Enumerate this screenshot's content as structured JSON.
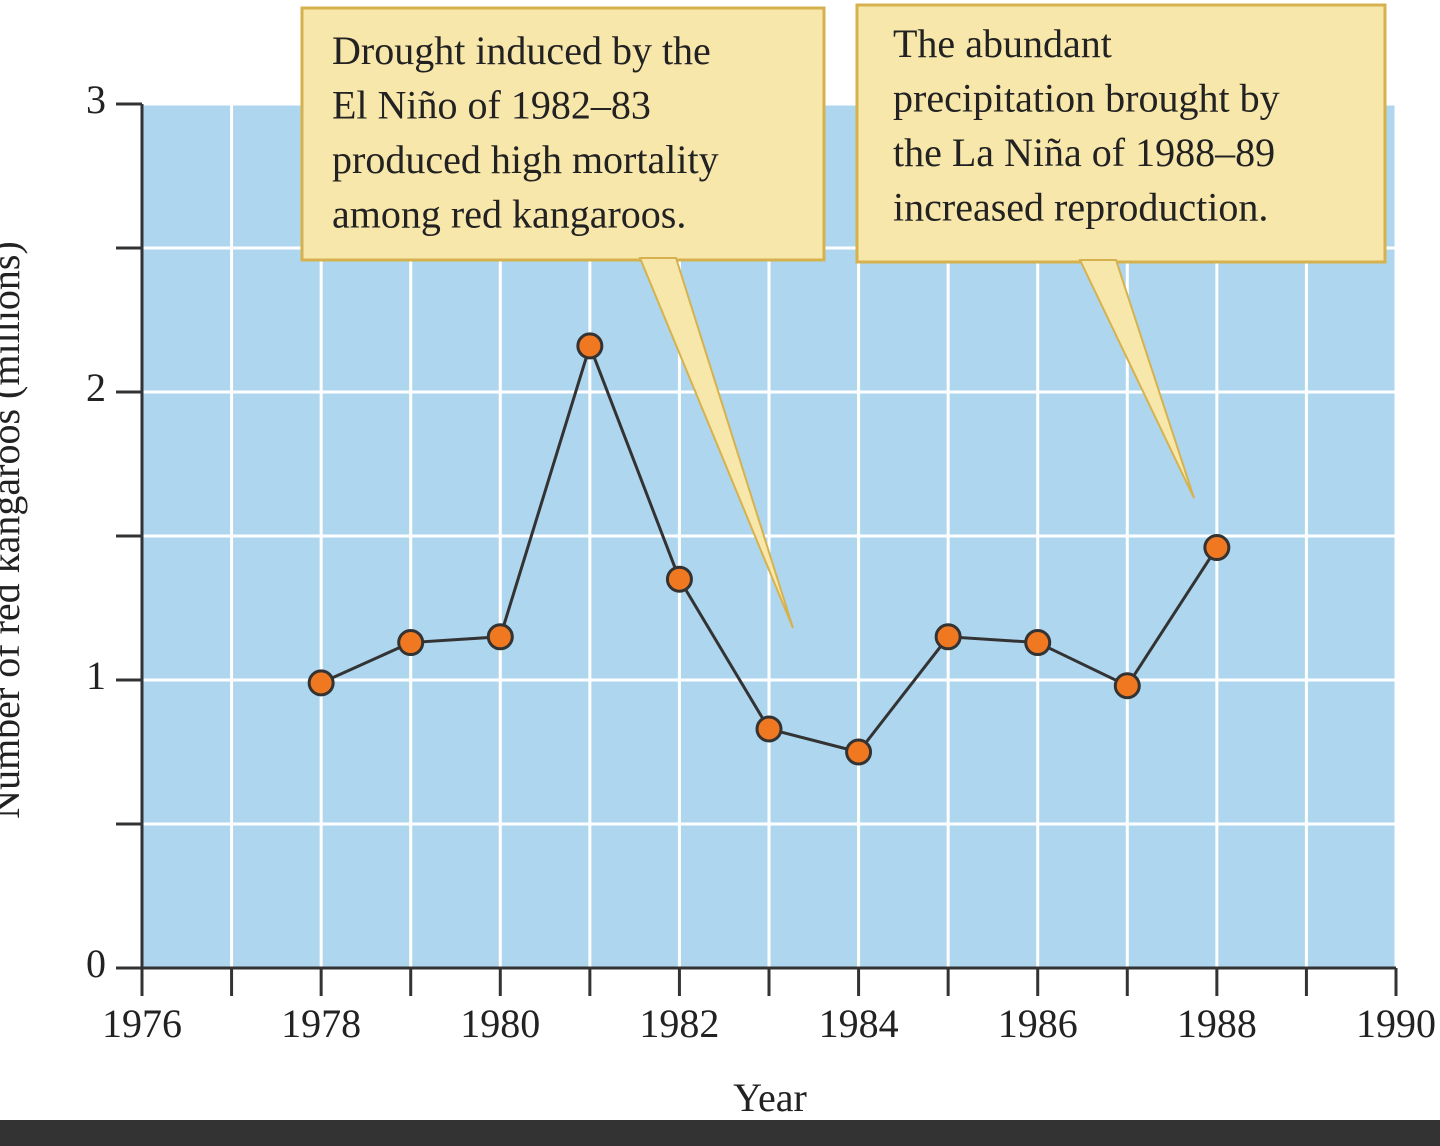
{
  "chart_data": {
    "type": "line",
    "x_label": "Year",
    "y_label": "Number of red kangaroos (millions)",
    "x": [
      1978,
      1979,
      1980,
      1981,
      1982,
      1983,
      1984,
      1985,
      1986,
      1987,
      1988
    ],
    "series": [
      {
        "color": "#f07820",
        "values": [
          0.99,
          1.13,
          1.15,
          2.16,
          1.35,
          0.83,
          0.75,
          1.15,
          1.13,
          0.98,
          1.46
        ]
      }
    ],
    "xlim": [
      1976,
      1990
    ],
    "ylim": [
      0,
      3
    ],
    "xticks": [
      1976,
      1978,
      1980,
      1982,
      1984,
      1986,
      1988,
      1990
    ],
    "xticks_minor": [
      1977,
      1979,
      1981,
      1983,
      1985,
      1987,
      1989
    ],
    "yticks": [
      0,
      1,
      2,
      3
    ],
    "yticks_minor": [
      0.5,
      1.5,
      2.5
    ],
    "grid": true,
    "annotations": [
      {
        "lines": [
          "Drought induced by the",
          "El Niño of 1982–83",
          "produced high mortality",
          "among red kangaroos."
        ]
      },
      {
        "lines": [
          "The abundant",
          "precipitation brought by",
          "the La Niña of 1988–89",
          "increased reproduction."
        ]
      }
    ]
  }
}
